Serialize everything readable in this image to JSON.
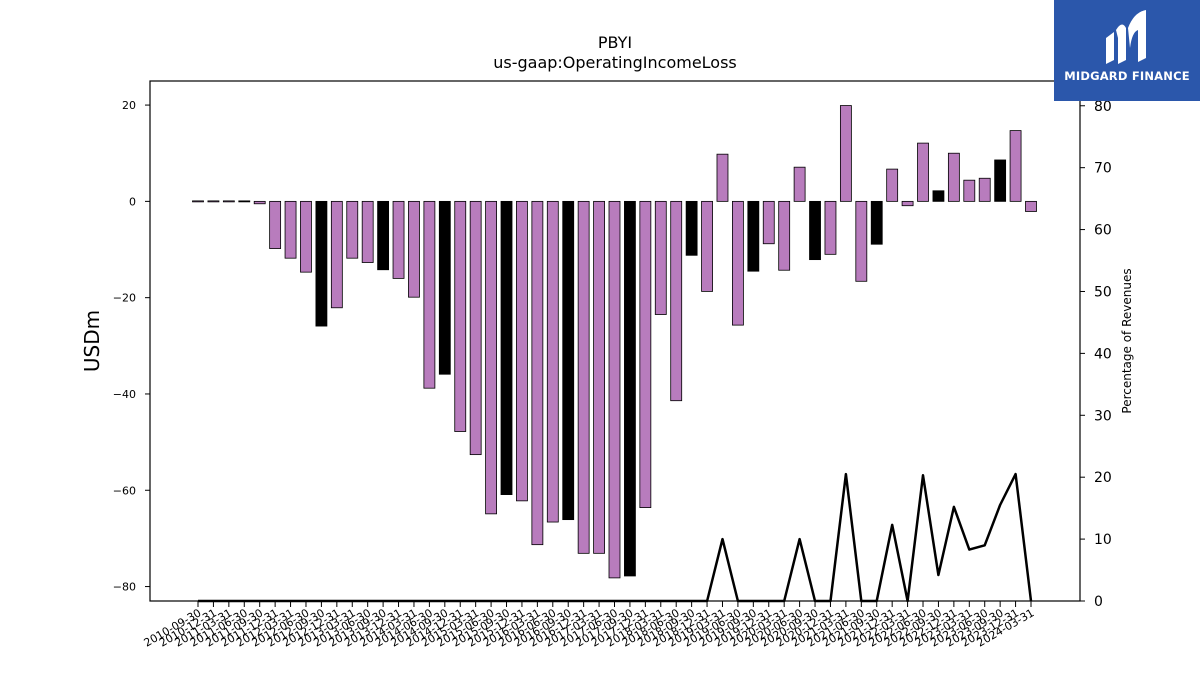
{
  "brand": {
    "name": "MIDGARD FINANCE",
    "logo_icon": "midgard-logo-icon",
    "color": "#2b57ab"
  },
  "chart_data": {
    "type": "bar",
    "title": "PBYI",
    "subtitle": "us-gaap:OperatingIncomeLoss",
    "ylabel": "USDm",
    "y2label": "Percentage of Revenues",
    "ylim": [
      -83,
      25
    ],
    "y2lim": [
      0,
      84
    ],
    "yticks": [
      20,
      0,
      -20,
      -40,
      -60,
      -80
    ],
    "y2ticks": [
      0,
      10,
      20,
      30,
      40,
      50,
      60,
      70,
      80
    ],
    "colors": {
      "quarterly": "#b87cbd",
      "annual": "#000000",
      "line": "#000000"
    },
    "categories": [
      "2010-09-30",
      "2010-12-31",
      "2011-03-31",
      "2011-06-30",
      "2011-09-30",
      "2011-12-31",
      "2012-03-31",
      "2012-06-30",
      "2012-09-30",
      "2012-12-31",
      "2013-03-31",
      "2013-06-30",
      "2013-09-30",
      "2013-12-31",
      "2014-03-31",
      "2014-06-30",
      "2014-09-30",
      "2014-12-31",
      "2015-03-31",
      "2015-06-30",
      "2015-09-30",
      "2015-12-31",
      "2016-03-31",
      "2016-06-30",
      "2016-09-30",
      "2016-12-31",
      "2017-03-31",
      "2017-06-30",
      "2017-09-30",
      "2017-12-31",
      "2018-03-31",
      "2018-06-30",
      "2018-09-30",
      "2018-12-31",
      "2019-03-31",
      "2019-06-30",
      "2019-09-30",
      "2019-12-31",
      "2020-03-31",
      "2020-06-30",
      "2020-09-30",
      "2020-12-31",
      "2021-03-31",
      "2021-06-30",
      "2021-09-30",
      "2021-12-31",
      "2022-03-31",
      "2022-06-30",
      "2022-09-30",
      "2022-12-31",
      "2023-03-31",
      "2023-06-30",
      "2023-09-30",
      "2023-12-31",
      "2024-03-31"
    ],
    "xtick_labels": [
      "2010-09-30",
      "2010-12-31",
      "2011-03-31",
      "2011-06-30",
      "2011-09-30",
      "2011-12-31",
      "2012-03-31",
      "2012-06-30",
      "2012-09-30",
      "2012-12-31",
      "2013-03-31",
      "2013-06-30",
      "2013-09-30",
      "2013-12-31",
      "2014-03-31",
      "2014-06-30",
      "2014-09-30",
      "2014-12-31",
      "2015-03-31",
      "2015-06-30",
      "2015-09-30",
      "2015-12-31",
      "2016-03-31",
      "2016-06-30",
      "2016-09-30",
      "2016-12-31",
      "2017-03-31",
      "2017-06-30",
      "2017-09-30",
      "2017-12-31",
      "2018-03-31",
      "2018-06-30",
      "2018-09-30",
      "2018-12-31",
      "2019-03-31",
      "2019-06-30",
      "2019-09-30",
      "2019-12-31",
      "2020-03-31",
      "2020-06-30",
      "2020-09-30",
      "2020-12-31",
      "2021-03-31",
      "2021-06-30",
      "2021-09-30",
      "2021-12-31",
      "2022-03-31",
      "2022-06-30",
      "2022-09-30",
      "2022-12-31",
      "2023-03-31",
      "2023-06-30",
      "2023-09-30",
      "2023-12-31",
      "2024-03-31"
    ],
    "values": [
      0.1,
      0.1,
      0.1,
      -0.2,
      -0.5,
      -9.8,
      -11.8,
      -14.7,
      -25.9,
      -22.1,
      -11.8,
      -12.7,
      -14.2,
      -16.0,
      -19.9,
      -38.8,
      -35.9,
      -47.8,
      -52.6,
      -64.9,
      -60.9,
      -62.2,
      -71.3,
      -66.6,
      -66.1,
      -73.1,
      -73.1,
      -78.2,
      -77.8,
      -63.6,
      -23.5,
      -41.4,
      -11.2,
      -18.7,
      9.8,
      -25.7,
      -14.5,
      -8.8,
      -14.3,
      7.1,
      -12.1,
      -11.0,
      19.9,
      -16.6,
      -8.9,
      6.7,
      -0.9,
      12.1,
      2.2,
      10.0,
      4.4,
      4.8,
      8.6,
      14.7,
      -2.1
    ],
    "annual": [
      false,
      false,
      false,
      true,
      false,
      false,
      false,
      false,
      true,
      false,
      false,
      false,
      true,
      false,
      false,
      false,
      true,
      false,
      false,
      false,
      true,
      false,
      false,
      false,
      true,
      false,
      false,
      false,
      true,
      false,
      false,
      false,
      true,
      false,
      false,
      false,
      true,
      false,
      false,
      false,
      true,
      false,
      false,
      false,
      true,
      false,
      false,
      false,
      true,
      false,
      false,
      false,
      true,
      false,
      false
    ],
    "pct_of_revenues_full": [
      0,
      0,
      0,
      0,
      0,
      0,
      0,
      0,
      0,
      0,
      0,
      0,
      0,
      0,
      0,
      0,
      0,
      0,
      0,
      0,
      0,
      0,
      0,
      0,
      0,
      0,
      0,
      0,
      0,
      0,
      0,
      0,
      0,
      0,
      10,
      0,
      0,
      0,
      0,
      10,
      0,
      0,
      20.5,
      0,
      0,
      12.3,
      0,
      20.3,
      4.2,
      15.2,
      8.3,
      9.0,
      15.5,
      20.5,
      0
    ],
    "pct_line_visible_from": 29
  }
}
